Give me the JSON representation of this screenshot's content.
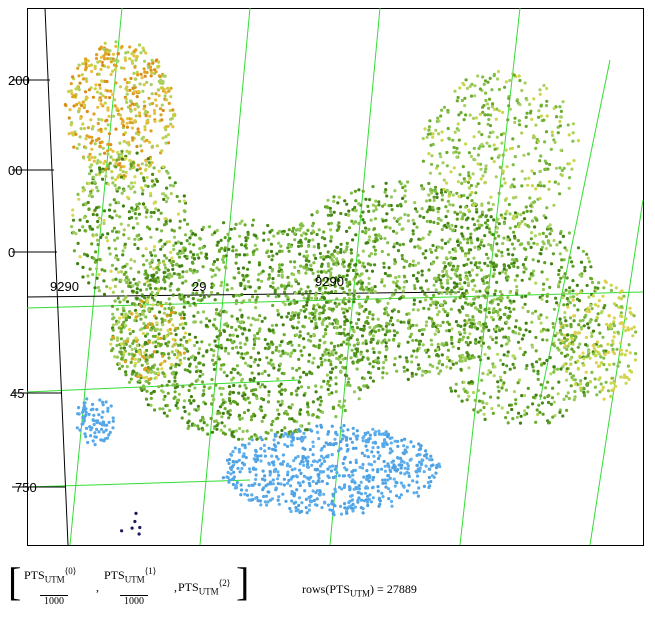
{
  "plot": {
    "axis_labels": [
      "200",
      "00",
      "0",
      "9290",
      "29",
      "9290",
      "45",
      "750"
    ]
  },
  "formula": {
    "name": "PTS",
    "subscript": "UTM",
    "columns": [
      "⟨0⟩",
      "⟨1⟩",
      "⟨2⟩"
    ],
    "divisor": "1000",
    "separator": ","
  },
  "result": {
    "function": "rows",
    "name": "PTS",
    "subscript": "UTM",
    "equals": "=",
    "value": "27889"
  }
}
